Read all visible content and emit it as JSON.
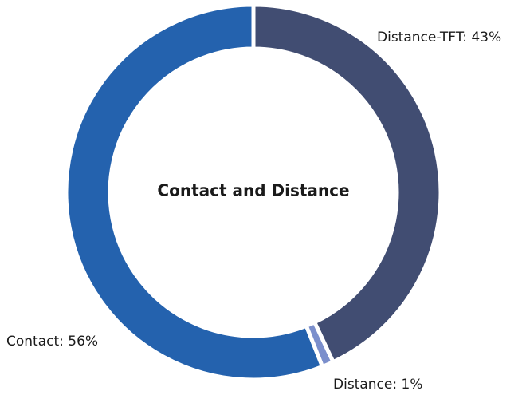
{
  "chart_data": {
    "type": "donut",
    "title": "Contact and Distance",
    "values": [
      43,
      1,
      56
    ],
    "value_labels": [
      "Distance-TFT: 43%",
      "Distance: 1%",
      "Contact: 56%"
    ],
    "colors": [
      "#414d72",
      "#7b8fcc",
      "#2462ae"
    ]
  }
}
